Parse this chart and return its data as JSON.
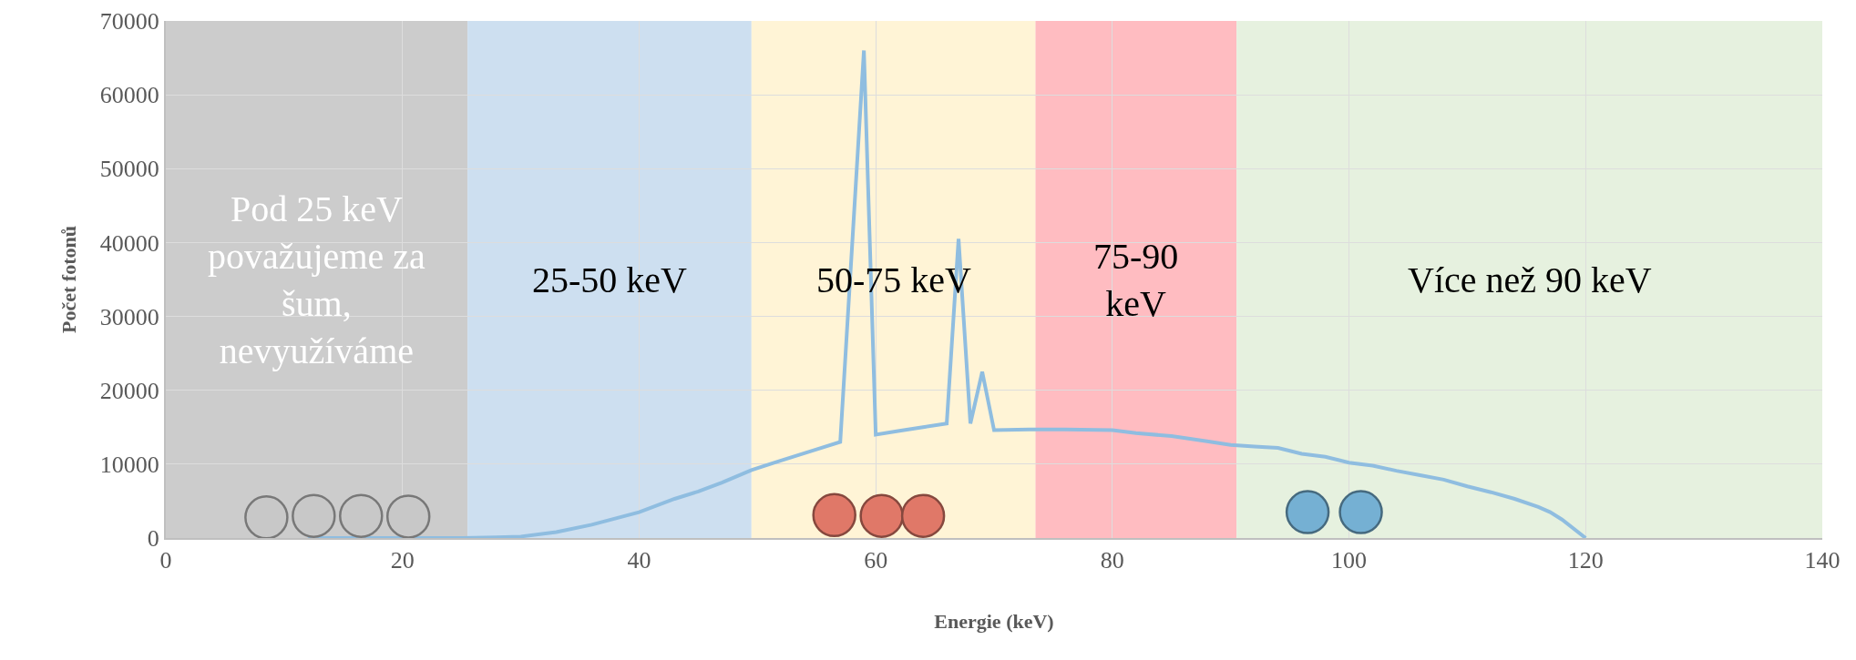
{
  "chart_data": {
    "type": "line",
    "xlabel": "Energie (keV)",
    "ylabel": "Počet fotonů",
    "xlim": [
      0,
      140
    ],
    "xticks": [
      0,
      20,
      40,
      60,
      80,
      100,
      120,
      140
    ],
    "ylim": [
      0,
      70000
    ],
    "yticks": [
      0,
      10000,
      20000,
      30000,
      40000,
      50000,
      60000,
      70000
    ],
    "grid": true,
    "marker": "none",
    "line_style": "solid",
    "series": [
      {
        "color": "#8fbde0",
        "x": [
          12,
          20,
          25,
          28,
          30,
          33,
          36,
          40,
          43,
          45,
          47,
          49.5,
          52,
          55,
          57,
          59,
          60,
          62,
          64,
          66,
          67,
          68,
          69,
          70,
          73,
          76,
          80,
          82,
          85,
          88,
          90,
          92,
          94,
          96,
          98,
          100,
          102,
          104,
          106,
          108,
          110,
          112,
          114,
          116,
          117,
          118,
          120
        ],
        "values": [
          0,
          0,
          0,
          100,
          200,
          800,
          1800,
          3500,
          5300,
          6300,
          7500,
          9200,
          10500,
          12000,
          13000,
          66000,
          14000,
          14500,
          15000,
          15500,
          40500,
          15500,
          22500,
          14600,
          14700,
          14700,
          14600,
          14200,
          13800,
          13100,
          12600,
          12400,
          12200,
          11400,
          11000,
          10200,
          9800,
          9100,
          8500,
          7900,
          7000,
          6200,
          5300,
          4200,
          3500,
          2500,
          0
        ]
      },
      {
        "type": "scatter",
        "marker": "circle",
        "color": "#c8c8c8",
        "x": [
          8.5,
          12.5,
          16.5,
          20.5
        ],
        "values": [
          2800,
          3000,
          3000,
          2900
        ]
      },
      {
        "type": "scatter",
        "marker": "circle",
        "color": "#e07868",
        "x": [
          56.5,
          60.5,
          64
        ],
        "values": [
          3100,
          3000,
          3000
        ]
      },
      {
        "type": "scatter",
        "marker": "circle",
        "color": "#75b0d3",
        "x": [
          96.5,
          101
        ],
        "values": [
          3500,
          3500
        ]
      }
    ],
    "bands": [
      {
        "axis": "x",
        "from": 0,
        "to": 25.5,
        "label": "Pod 25 keV\npovažujeme za\nšum,\nnevyužíváme",
        "color": "#cccccc"
      },
      {
        "axis": "x",
        "from": 25.5,
        "to": 49.5,
        "label": "25-50 keV",
        "color": "#cddff0"
      },
      {
        "axis": "x",
        "from": 49.5,
        "to": 73.5,
        "label": "50-75 keV",
        "color": "#fff4d6"
      },
      {
        "axis": "x",
        "from": 73.5,
        "to": 90.5,
        "label": "75-90\nkeV",
        "color": "#ffbcc1"
      },
      {
        "axis": "x",
        "from": 90.5,
        "to": 140,
        "label": "Více než 90 keV",
        "color": "#e6f1df"
      }
    ]
  }
}
